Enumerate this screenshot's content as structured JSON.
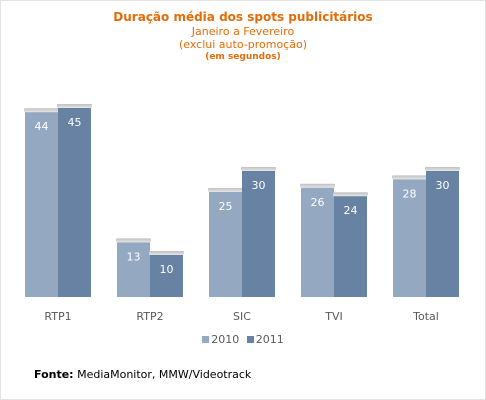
{
  "chart_data": {
    "type": "bar",
    "title": "Duração média dos spots publicitários",
    "subtitle_lines": [
      "Janeiro a Fevereiro",
      "(exclui auto-promoção)"
    ],
    "unit_note": "(em segundos)",
    "categories": [
      "RTP1",
      "RTP2",
      "SIC",
      "TVI",
      "Total"
    ],
    "series": [
      {
        "name": "2010",
        "values": [
          44,
          13,
          25,
          26,
          28
        ],
        "color": "#95a8c2"
      },
      {
        "name": "2011",
        "values": [
          45,
          10,
          30,
          24,
          30
        ],
        "color": "#6882a3"
      }
    ],
    "ylim": [
      0,
      45
    ],
    "grid": false,
    "legend_position": "bottom",
    "label_color": "#ffffff"
  },
  "source": {
    "label": "Fonte:",
    "text": " MediaMonitor, MMW/Videotrack"
  }
}
